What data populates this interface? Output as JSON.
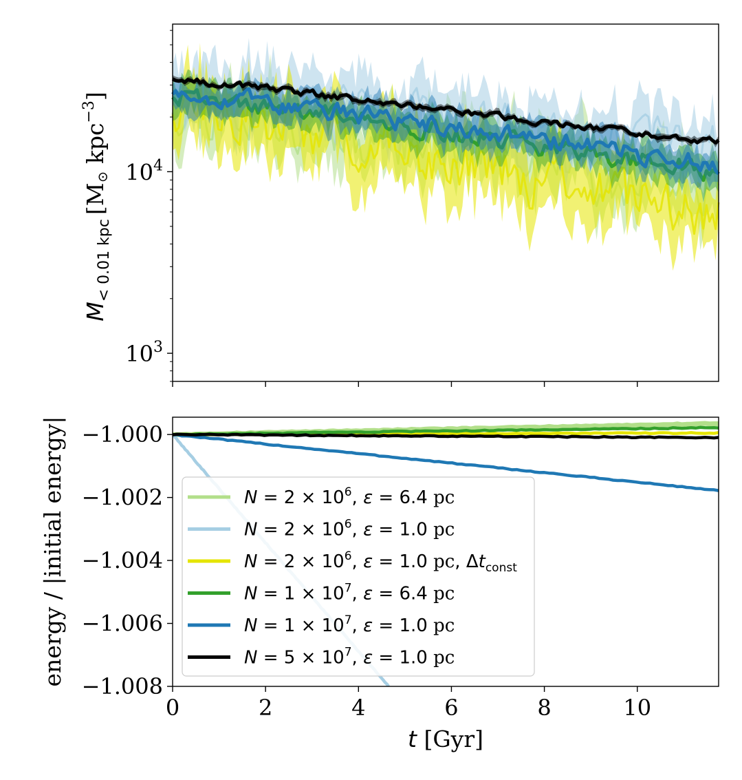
{
  "chart_data": [
    {
      "type": "line",
      "panel": "top",
      "title": "",
      "ylabel_main": "M",
      "ylabel_sub": "< 0.01 kpc",
      "ylabel_units": "[M",
      "ylabel_units_tail": " kpc",
      "ylabel_exp": "−3",
      "ylabel_close": "]",
      "yscale": "log",
      "ylim": [
        700,
        65000
      ],
      "xlim": [
        0,
        11.75
      ],
      "yticks": [
        {
          "value": 1000,
          "base": "10",
          "exp": "3"
        },
        {
          "value": 10000,
          "base": "10",
          "exp": "4"
        }
      ],
      "series": [
        {
          "name": "N = 2×10^6, ε = 6.4 pc",
          "color": "#b2df8a",
          "style": "band",
          "start": 25000,
          "end": 8000,
          "noise": 0.32,
          "band": 0.35,
          "seed": 11
        },
        {
          "name": "N = 2×10^6, ε = 1.0 pc",
          "color": "#a6cee3",
          "style": "band",
          "start": 30000,
          "end": 14000,
          "noise": 0.22,
          "band": 0.35,
          "seed": 23
        },
        {
          "name": "N = 2×10^6, ε = 1.0 pc, Δt_const",
          "color": "#e5e500",
          "style": "band",
          "start": 24000,
          "end": 5500,
          "noise": 0.3,
          "band": 0.4,
          "seed": 37
        },
        {
          "name": "N = 1×10^7, ε = 6.4 pc",
          "color": "#33a02c",
          "style": "line",
          "start": 27000,
          "end": 10000,
          "noise": 0.1,
          "band": 0.2,
          "seed": 41
        },
        {
          "name": "N = 1×10^7, ε = 1.0 pc",
          "color": "#1f78b4",
          "style": "line",
          "start": 28000,
          "end": 11000,
          "noise": 0.1,
          "band": 0.2,
          "seed": 53
        },
        {
          "name": "N = 5×10^7, ε = 1.0 pc",
          "color": "#000000",
          "style": "line",
          "start": 33000,
          "end": 14500,
          "noise": 0.035,
          "band": 0.04,
          "seed": 67
        }
      ]
    },
    {
      "type": "line",
      "panel": "bottom",
      "xlabel_var": "t",
      "xlabel_units": " [Gyr]",
      "ylabel": "energy / |initial energy|",
      "xlim": [
        0,
        11.75
      ],
      "ylim": [
        -1.008,
        -0.99945
      ],
      "xticks": [
        "0",
        "2",
        "4",
        "6",
        "8",
        "10"
      ],
      "yticks": [
        "−1.000",
        "−1.002",
        "−1.004",
        "−1.006",
        "−1.008"
      ],
      "series": [
        {
          "name": "N = 2×10^6, ε = 6.4 pc",
          "color": "#b2df8a",
          "x": [
            0,
            11.75
          ],
          "y": [
            -1.0,
            -0.99965
          ]
        },
        {
          "name": "N = 2×10^6, ε = 1.0 pc",
          "color": "#a6cee3",
          "x": [
            0,
            4.65
          ],
          "y": [
            -1.0,
            -1.008
          ]
        },
        {
          "name": "N = 2×10^6, ε = 1.0 pc, Δt_const",
          "color": "#e5e500",
          "x": [
            0,
            11.75
          ],
          "y": [
            -1.0,
            -0.99995
          ]
        },
        {
          "name": "N = 1×10^7, ε = 6.4 pc",
          "color": "#33a02c",
          "x": [
            0,
            11.75
          ],
          "y": [
            -1.0,
            -0.99978
          ]
        },
        {
          "name": "N = 1×10^7, ε = 1.0 pc",
          "color": "#1f78b4",
          "x": [
            0,
            11.75
          ],
          "y": [
            -1.0,
            -1.00178
          ]
        },
        {
          "name": "N = 5×10^7, ε = 1.0 pc",
          "color": "#000000",
          "x": [
            0,
            11.75
          ],
          "y": [
            -1.0,
            -1.0001
          ]
        }
      ],
      "legend": {
        "placement": "lower-left",
        "entries": [
          {
            "color": "#b2df8a",
            "n_mant": "2",
            "n_exp": "6",
            "eps": "6.4",
            "extra": false
          },
          {
            "color": "#a6cee3",
            "n_mant": "2",
            "n_exp": "6",
            "eps": "1.0",
            "extra": false
          },
          {
            "color": "#e5e500",
            "n_mant": "2",
            "n_exp": "6",
            "eps": "1.0",
            "extra": true
          },
          {
            "color": "#33a02c",
            "n_mant": "1",
            "n_exp": "7",
            "eps": "6.4",
            "extra": false
          },
          {
            "color": "#1f78b4",
            "n_mant": "1",
            "n_exp": "7",
            "eps": "1.0",
            "extra": false
          },
          {
            "color": "#000000",
            "n_mant": "5",
            "n_exp": "7",
            "eps": "1.0",
            "extra": false
          }
        ],
        "n_symbol": "N",
        "eq_times": " = ",
        "times_sym": " × 10",
        "eps_symbol": "ε",
        "unit": " pc",
        "dt_prefix": ", Δ",
        "dt_var": "t",
        "dt_sub": "const"
      }
    }
  ]
}
